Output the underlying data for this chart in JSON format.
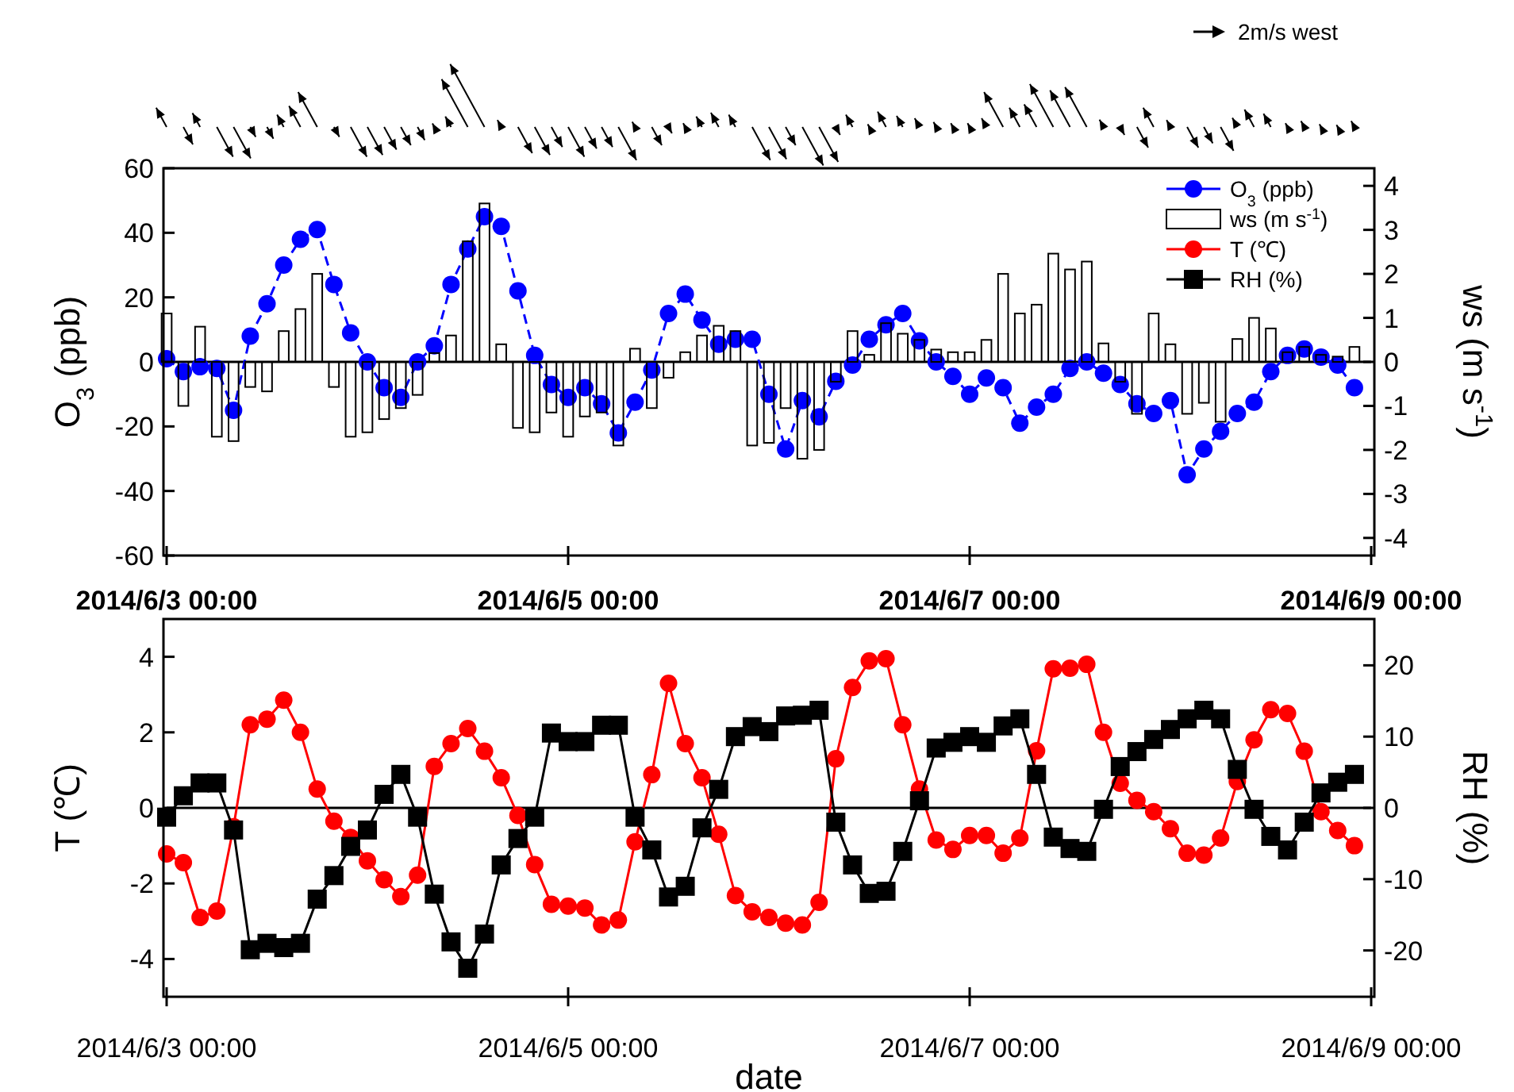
{
  "chart_data": [
    {
      "type": "line",
      "ylabel": "O$_{3}$ (ppb)",
      "y2label": "ws (m s$^{-1}$)",
      "annotations": [
        "2m/s west"
      ],
      "legend": "top right",
      "x": [
        "2014-06-03T00:00",
        "2014-06-03T02:00",
        "2014-06-03T04:00",
        "2014-06-03T06:00",
        "2014-06-03T08:00",
        "2014-06-03T10:00",
        "2014-06-03T12:00",
        "2014-06-03T14:00",
        "2014-06-03T16:00",
        "2014-06-03T18:00",
        "2014-06-03T20:00",
        "2014-06-03T22:00",
        "2014-06-04T00:00",
        "2014-06-04T02:00",
        "2014-06-04T04:00",
        "2014-06-04T06:00",
        "2014-06-04T08:00",
        "2014-06-04T10:00",
        "2014-06-04T12:00",
        "2014-06-04T14:00",
        "2014-06-04T16:00",
        "2014-06-04T18:00",
        "2014-06-04T20:00",
        "2014-06-04T22:00",
        "2014-06-05T00:00",
        "2014-06-05T02:00",
        "2014-06-05T04:00",
        "2014-06-05T06:00",
        "2014-06-05T08:00",
        "2014-06-05T10:00",
        "2014-06-05T12:00",
        "2014-06-05T14:00",
        "2014-06-05T16:00",
        "2014-06-05T18:00",
        "2014-06-05T20:00",
        "2014-06-05T22:00",
        "2014-06-06T00:00",
        "2014-06-06T02:00",
        "2014-06-06T04:00",
        "2014-06-06T06:00",
        "2014-06-06T08:00",
        "2014-06-06T10:00",
        "2014-06-06T12:00",
        "2014-06-06T14:00",
        "2014-06-06T16:00",
        "2014-06-06T18:00",
        "2014-06-06T20:00",
        "2014-06-06T22:00",
        "2014-06-07T00:00",
        "2014-06-07T02:00",
        "2014-06-07T04:00",
        "2014-06-07T06:00",
        "2014-06-07T08:00",
        "2014-06-07T10:00",
        "2014-06-07T12:00",
        "2014-06-07T14:00",
        "2014-06-07T16:00",
        "2014-06-07T18:00",
        "2014-06-07T20:00",
        "2014-06-07T22:00",
        "2014-06-08T00:00",
        "2014-06-08T02:00",
        "2014-06-08T04:00",
        "2014-06-08T06:00",
        "2014-06-08T08:00",
        "2014-06-08T10:00",
        "2014-06-08T12:00",
        "2014-06-08T14:00",
        "2014-06-08T16:00",
        "2014-06-08T18:00",
        "2014-06-08T20:00",
        "2014-06-08T22:00"
      ],
      "xlim": [
        "2014-06-03T00:00",
        "2014-06-09T00:00"
      ],
      "xticks": [
        {
          "value": "2014-06-03T00:00",
          "label": "2014/6/3 00:00"
        },
        {
          "value": "2014-06-05T00:00",
          "label": "2014/6/5 00:00"
        },
        {
          "value": "2014-06-07T00:00",
          "label": "2014/6/7 00:00"
        },
        {
          "value": "2014-06-09T00:00",
          "label": "2014/6/9 00:00"
        }
      ],
      "ylim": [
        -60,
        60
      ],
      "yticks": [
        -60,
        -40,
        -20,
        0,
        20,
        40,
        60
      ],
      "y2lim": [
        -4.4,
        4.4
      ],
      "y2ticks": [
        -4,
        -3,
        -2,
        -1,
        0,
        1,
        2,
        3,
        4
      ],
      "ref_lines": [
        {
          "axis": "y",
          "value": 0,
          "color": "#000000"
        }
      ],
      "series": [
        {
          "name": "O$_{3}$ (ppb)",
          "color": "#0000ff",
          "marker": "circle",
          "line_style": "dashed",
          "values": [
            1,
            -3,
            -1.5,
            -2,
            -15,
            8,
            18,
            30,
            38,
            41,
            24,
            9,
            0,
            -8,
            -11,
            0,
            5,
            24,
            35,
            45,
            42,
            22,
            2,
            -7,
            -11,
            -8,
            -13,
            -22,
            -12.5,
            -2.5,
            15,
            21,
            13,
            5.5,
            7,
            7,
            -10,
            -27,
            -12,
            -17,
            -6,
            -1,
            7,
            11.5,
            15,
            6.5,
            0,
            -4.5,
            -10,
            -5,
            -8,
            -19,
            -14,
            -10,
            -2,
            0,
            -3.5,
            -7,
            -13,
            -16,
            -12,
            -35,
            -27,
            -21.5,
            -16,
            -12.5,
            -3,
            2,
            4,
            1.5,
            -1,
            -8
          ]
        },
        {
          "name": "ws (m s$^{-1}$)",
          "type": "bar",
          "axis": "y2",
          "color": "#000000",
          "values": [
            1.1,
            -1.0,
            0.8,
            -1.7,
            -1.8,
            -0.57,
            -0.67,
            0.7,
            1.2,
            2.0,
            -0.57,
            -1.7,
            -1.6,
            -1.3,
            -1.05,
            -0.75,
            0.2,
            0.6,
            2.74,
            3.6,
            0.4,
            -1.5,
            -1.6,
            -1.15,
            -1.7,
            -1.24,
            -1.15,
            -1.9,
            0.3,
            -1.05,
            -0.36,
            0.22,
            0.6,
            0.82,
            0.7,
            -1.9,
            -1.84,
            -1.05,
            -2.2,
            -2.0,
            -0.45,
            0.7,
            0.16,
            0.88,
            0.64,
            0.5,
            0.28,
            0.22,
            0.22,
            0.5,
            2.0,
            1.1,
            1.3,
            2.46,
            2.1,
            2.28,
            0.42,
            -0.45,
            -1.18,
            1.1,
            0.4,
            -1.18,
            -0.93,
            -1.36,
            0.52,
            1.0,
            0.76,
            0.22,
            0.34,
            0.16,
            0.12,
            0.34
          ]
        }
      ]
    },
    {
      "type": "line",
      "xlabel": "date",
      "ylabel": "T (℃)",
      "y2label": "RH (%)",
      "legend": "top right",
      "x": [
        "2014-06-03T00:00",
        "2014-06-03T02:00",
        "2014-06-03T04:00",
        "2014-06-03T06:00",
        "2014-06-03T08:00",
        "2014-06-03T10:00",
        "2014-06-03T12:00",
        "2014-06-03T14:00",
        "2014-06-03T16:00",
        "2014-06-03T18:00",
        "2014-06-03T20:00",
        "2014-06-03T22:00",
        "2014-06-04T00:00",
        "2014-06-04T02:00",
        "2014-06-04T04:00",
        "2014-06-04T06:00",
        "2014-06-04T08:00",
        "2014-06-04T10:00",
        "2014-06-04T12:00",
        "2014-06-04T14:00",
        "2014-06-04T16:00",
        "2014-06-04T18:00",
        "2014-06-04T20:00",
        "2014-06-04T22:00",
        "2014-06-05T00:00",
        "2014-06-05T02:00",
        "2014-06-05T04:00",
        "2014-06-05T06:00",
        "2014-06-05T08:00",
        "2014-06-05T10:00",
        "2014-06-05T12:00",
        "2014-06-05T14:00",
        "2014-06-05T16:00",
        "2014-06-05T18:00",
        "2014-06-05T20:00",
        "2014-06-05T22:00",
        "2014-06-06T00:00",
        "2014-06-06T02:00",
        "2014-06-06T04:00",
        "2014-06-06T06:00",
        "2014-06-06T08:00",
        "2014-06-06T10:00",
        "2014-06-06T12:00",
        "2014-06-06T14:00",
        "2014-06-06T16:00",
        "2014-06-06T18:00",
        "2014-06-06T20:00",
        "2014-06-06T22:00",
        "2014-06-07T00:00",
        "2014-06-07T02:00",
        "2014-06-07T04:00",
        "2014-06-07T06:00",
        "2014-06-07T08:00",
        "2014-06-07T10:00",
        "2014-06-07T12:00",
        "2014-06-07T14:00",
        "2014-06-07T16:00",
        "2014-06-07T18:00",
        "2014-06-07T20:00",
        "2014-06-07T22:00",
        "2014-06-08T00:00",
        "2014-06-08T02:00",
        "2014-06-08T04:00",
        "2014-06-08T06:00",
        "2014-06-08T08:00",
        "2014-06-08T10:00",
        "2014-06-08T12:00",
        "2014-06-08T14:00",
        "2014-06-08T16:00",
        "2014-06-08T18:00",
        "2014-06-08T20:00",
        "2014-06-08T22:00"
      ],
      "xlim": [
        "2014-06-03T00:00",
        "2014-06-09T00:00"
      ],
      "xticks": [
        {
          "value": "2014-06-03T00:00",
          "label": "2014/6/3 00:00"
        },
        {
          "value": "2014-06-05T00:00",
          "label": "2014/6/5 00:00"
        },
        {
          "value": "2014-06-07T00:00",
          "label": "2014/6/7 00:00"
        },
        {
          "value": "2014-06-09T00:00",
          "label": "2014/6/9 00:00"
        }
      ],
      "ylim": [
        -5,
        5
      ],
      "yticks": [
        -4,
        -2,
        0,
        2,
        4
      ],
      "y2lim": [
        -26.5,
        26.5
      ],
      "y2ticks": [
        -20,
        -10,
        0,
        10,
        20
      ],
      "ref_lines": [
        {
          "axis": "y",
          "value": 0,
          "color": "#000000"
        }
      ],
      "series": [
        {
          "name": "T (℃)",
          "color": "#ff0000",
          "marker": "circle",
          "line_style": "solid",
          "values": [
            -1.22,
            -1.45,
            -2.9,
            -2.73,
            -0.5,
            2.2,
            2.35,
            2.85,
            2.0,
            0.5,
            -0.35,
            -0.78,
            -1.4,
            -1.9,
            -2.35,
            -1.78,
            1.1,
            1.7,
            2.1,
            1.5,
            0.8,
            -0.2,
            -1.5,
            -2.55,
            -2.6,
            -2.65,
            -3.1,
            -2.97,
            -0.9,
            0.88,
            3.3,
            1.7,
            0.8,
            -0.7,
            -2.32,
            -2.75,
            -2.9,
            -3.05,
            -3.1,
            -2.5,
            1.3,
            3.19,
            3.89,
            3.95,
            2.2,
            0.5,
            -0.85,
            -1.1,
            -0.73,
            -0.73,
            -1.2,
            -0.8,
            1.51,
            3.68,
            3.7,
            3.8,
            2.0,
            0.65,
            0.2,
            -0.1,
            -0.55,
            -1.2,
            -1.25,
            -0.8,
            0.7,
            1.8,
            2.6,
            2.5,
            1.5,
            -0.1,
            -0.6,
            -1.0
          ]
        },
        {
          "name": "RH (%)",
          "axis": "y2",
          "color": "#000000",
          "marker": "square",
          "line_style": "solid",
          "values": [
            -1.3,
            1.7,
            3.5,
            3.5,
            -3.1,
            -19.9,
            -19,
            -19.6,
            -19,
            -12.8,
            -9.5,
            -5.4,
            -3.1,
            1.9,
            4.7,
            -1.3,
            -12.1,
            -18.8,
            -22.5,
            -17.7,
            -8.0,
            -4.3,
            -1.3,
            10.5,
            9.3,
            9.3,
            11.6,
            11.6,
            -1.3,
            -5.9,
            -12.5,
            -11,
            -2.8,
            2.6,
            10,
            11.4,
            10.7,
            12.9,
            13,
            13.7,
            -2.0,
            -8,
            -12,
            -11.7,
            -6.1,
            1.0,
            8.4,
            9.2,
            10,
            9.2,
            11.5,
            12.5,
            4.7,
            -4.1,
            -5.7,
            -6.1,
            -0.2,
            5.8,
            7.9,
            9.6,
            11.0,
            12.5,
            13.7,
            12.5,
            5.4,
            -0.2,
            -4,
            -5.9,
            -2.0,
            2.1,
            3.6,
            4.7
          ]
        }
      ]
    }
  ]
}
